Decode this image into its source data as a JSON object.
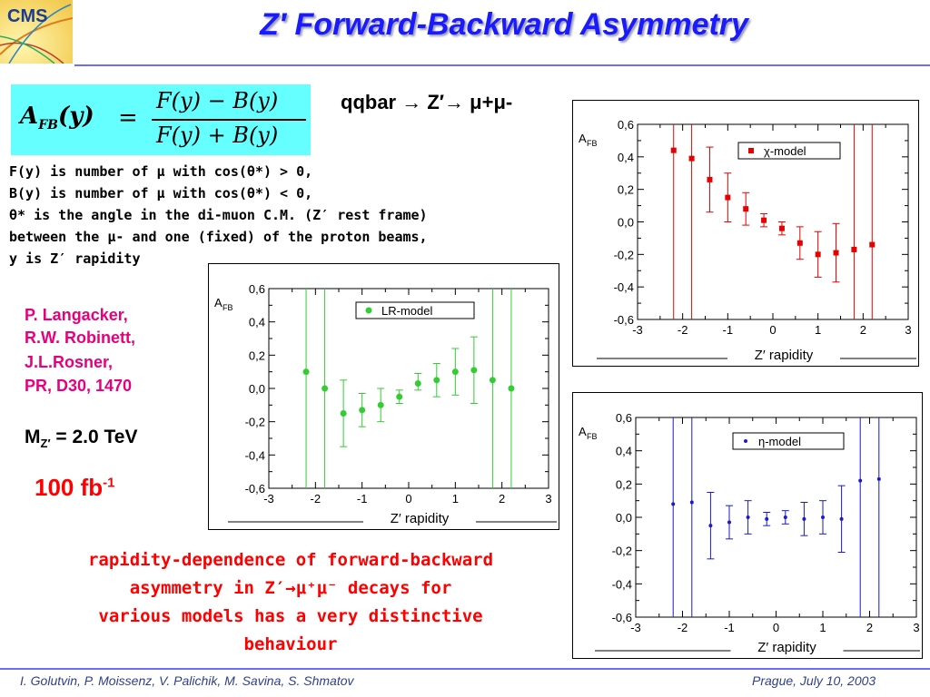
{
  "header": {
    "logo_text": "CMS",
    "title": "Z′ Forward-Backward Asymmetry"
  },
  "formula": {
    "lhs": "A",
    "lhs_sub": "FB",
    "lhs_arg": "(y)",
    "eq": "=",
    "numerator": "F(y) − B(y)",
    "denominator": "F(y) + B(y)"
  },
  "process": "qqbar → Z′→ μ+μ-",
  "definitions": [
    "F(y) is number of μ with cos(θ*) > 0,",
    "B(y) is number of μ with cos(θ*) < 0,",
    "θ* is the angle in the di-muon C.M. (Z′ rest frame)",
    "between the μ- and one (fixed) of the proton beams,",
    "y is Z′ rapidity"
  ],
  "reference": [
    "P. Langacker,",
    "R.W. Robinett,",
    "J.L.Rosner,",
    "PR, D30, 1470"
  ],
  "mass": {
    "label": "M",
    "sub": "Z′",
    "value": "= 2.0 TeV"
  },
  "luminosity": {
    "value": "100 fb",
    "sup": "-1"
  },
  "caption": [
    "rapidity-dependence of forward-backward",
    "asymmetry in Z′→μ⁺μ⁻ decays for",
    "various models has a very distinctive",
    "behaviour"
  ],
  "footer": {
    "authors": "I. Golutvin, P. Moissenz, V. Palichik, M. Savina, S. Shmatov",
    "place_date": "Prague, July 10,  2003"
  },
  "colors": {
    "title": "#1a1aff",
    "formula_bg": "#66ffff",
    "reference": "#e6007e",
    "lumi": "#ff0000",
    "caption": "#ff0000",
    "chi_model": "#e60000",
    "lr_model": "#33cc33",
    "eta_model": "#1a1acc",
    "rule": "#6c6cff"
  },
  "chart_data": [
    {
      "type": "scatter",
      "id": "chi",
      "marker": "square",
      "ylabel_main": "A",
      "ylabel_sub": "FB",
      "xlabel": "Z′ rapidity",
      "xlim": [
        -3,
        3
      ],
      "ylim": [
        -0.6,
        0.6
      ],
      "xticks": [
        "-3",
        "-2",
        "-1",
        "0",
        "1",
        "2",
        "3"
      ],
      "yticks": [
        "0,6",
        "0,4",
        "0,2",
        "0,0",
        "-0,2",
        "-0,4",
        "-0,6"
      ],
      "legend": "χ-model",
      "points": [
        {
          "x": -2.2,
          "y": 0.44,
          "lo": -0.6,
          "hi": 0.6
        },
        {
          "x": -1.8,
          "y": 0.39,
          "lo": -0.6,
          "hi": 0.6
        },
        {
          "x": -1.4,
          "y": 0.26,
          "lo": 0.06,
          "hi": 0.46
        },
        {
          "x": -1.0,
          "y": 0.15,
          "lo": 0.0,
          "hi": 0.3
        },
        {
          "x": -0.6,
          "y": 0.08,
          "lo": -0.02,
          "hi": 0.18
        },
        {
          "x": -0.2,
          "y": 0.01,
          "lo": -0.03,
          "hi": 0.05
        },
        {
          "x": 0.2,
          "y": -0.04,
          "lo": -0.08,
          "hi": 0.0
        },
        {
          "x": 0.6,
          "y": -0.13,
          "lo": -0.23,
          "hi": -0.03
        },
        {
          "x": 1.0,
          "y": -0.2,
          "lo": -0.34,
          "hi": -0.06
        },
        {
          "x": 1.4,
          "y": -0.19,
          "lo": -0.37,
          "hi": -0.01
        },
        {
          "x": 1.8,
          "y": -0.17,
          "lo": -0.6,
          "hi": 0.6
        },
        {
          "x": 2.2,
          "y": -0.14,
          "lo": -0.6,
          "hi": 0.6
        }
      ]
    },
    {
      "type": "scatter",
      "id": "lr",
      "marker": "circle",
      "ylabel_main": "A",
      "ylabel_sub": "FB",
      "xlabel": "Z′ rapidity",
      "xlim": [
        -3,
        3
      ],
      "ylim": [
        -0.6,
        0.6
      ],
      "xticks": [
        "-3",
        "-2",
        "-1",
        "0",
        "1",
        "2",
        "3"
      ],
      "yticks": [
        "0,6",
        "0,4",
        "0,2",
        "0,0",
        "-0,2",
        "-0,4",
        "-0,6"
      ],
      "legend": "LR-model",
      "points": [
        {
          "x": -2.2,
          "y": 0.1,
          "lo": -0.6,
          "hi": 0.6
        },
        {
          "x": -1.8,
          "y": 0.0,
          "lo": -0.6,
          "hi": 0.6
        },
        {
          "x": -1.4,
          "y": -0.15,
          "lo": -0.35,
          "hi": 0.05
        },
        {
          "x": -1.0,
          "y": -0.13,
          "lo": -0.23,
          "hi": -0.03
        },
        {
          "x": -0.6,
          "y": -0.1,
          "lo": -0.2,
          "hi": 0.0
        },
        {
          "x": -0.2,
          "y": -0.05,
          "lo": -0.09,
          "hi": -0.01
        },
        {
          "x": 0.2,
          "y": 0.03,
          "lo": -0.01,
          "hi": 0.09
        },
        {
          "x": 0.6,
          "y": 0.05,
          "lo": -0.05,
          "hi": 0.15
        },
        {
          "x": 1.0,
          "y": 0.1,
          "lo": -0.04,
          "hi": 0.24
        },
        {
          "x": 1.4,
          "y": 0.11,
          "lo": -0.09,
          "hi": 0.31
        },
        {
          "x": 1.8,
          "y": 0.05,
          "lo": -0.6,
          "hi": 0.6
        },
        {
          "x": 2.2,
          "y": 0.0,
          "lo": -0.6,
          "hi": 0.6
        }
      ]
    },
    {
      "type": "scatter",
      "id": "eta",
      "marker": "dot",
      "ylabel_main": "A",
      "ylabel_sub": "FB",
      "xlabel": "Z′ rapidity",
      "xlim": [
        -3,
        3
      ],
      "ylim": [
        -0.6,
        0.6
      ],
      "xticks": [
        "-3",
        "-2",
        "-1",
        "0",
        "1",
        "2",
        "3"
      ],
      "yticks": [
        "0,6",
        "0,4",
        "0,2",
        "0,0",
        "-0,2",
        "-0,4",
        "-0,6"
      ],
      "legend": "η-model",
      "points": [
        {
          "x": -2.2,
          "y": 0.08,
          "lo": -0.6,
          "hi": 0.6
        },
        {
          "x": -1.8,
          "y": 0.09,
          "lo": -0.6,
          "hi": 0.6
        },
        {
          "x": -1.4,
          "y": -0.05,
          "lo": -0.25,
          "hi": 0.15
        },
        {
          "x": -1.0,
          "y": -0.03,
          "lo": -0.13,
          "hi": 0.07
        },
        {
          "x": -0.6,
          "y": 0.0,
          "lo": -0.1,
          "hi": 0.1
        },
        {
          "x": -0.2,
          "y": -0.01,
          "lo": -0.05,
          "hi": 0.03
        },
        {
          "x": 0.2,
          "y": 0.0,
          "lo": -0.04,
          "hi": 0.04
        },
        {
          "x": 0.6,
          "y": -0.01,
          "lo": -0.11,
          "hi": 0.09
        },
        {
          "x": 1.0,
          "y": 0.0,
          "lo": -0.1,
          "hi": 0.1
        },
        {
          "x": 1.4,
          "y": -0.01,
          "lo": -0.21,
          "hi": 0.19
        },
        {
          "x": 1.8,
          "y": 0.22,
          "lo": -0.6,
          "hi": 0.6
        },
        {
          "x": 2.2,
          "y": 0.23,
          "lo": -0.6,
          "hi": 0.6
        }
      ]
    }
  ]
}
